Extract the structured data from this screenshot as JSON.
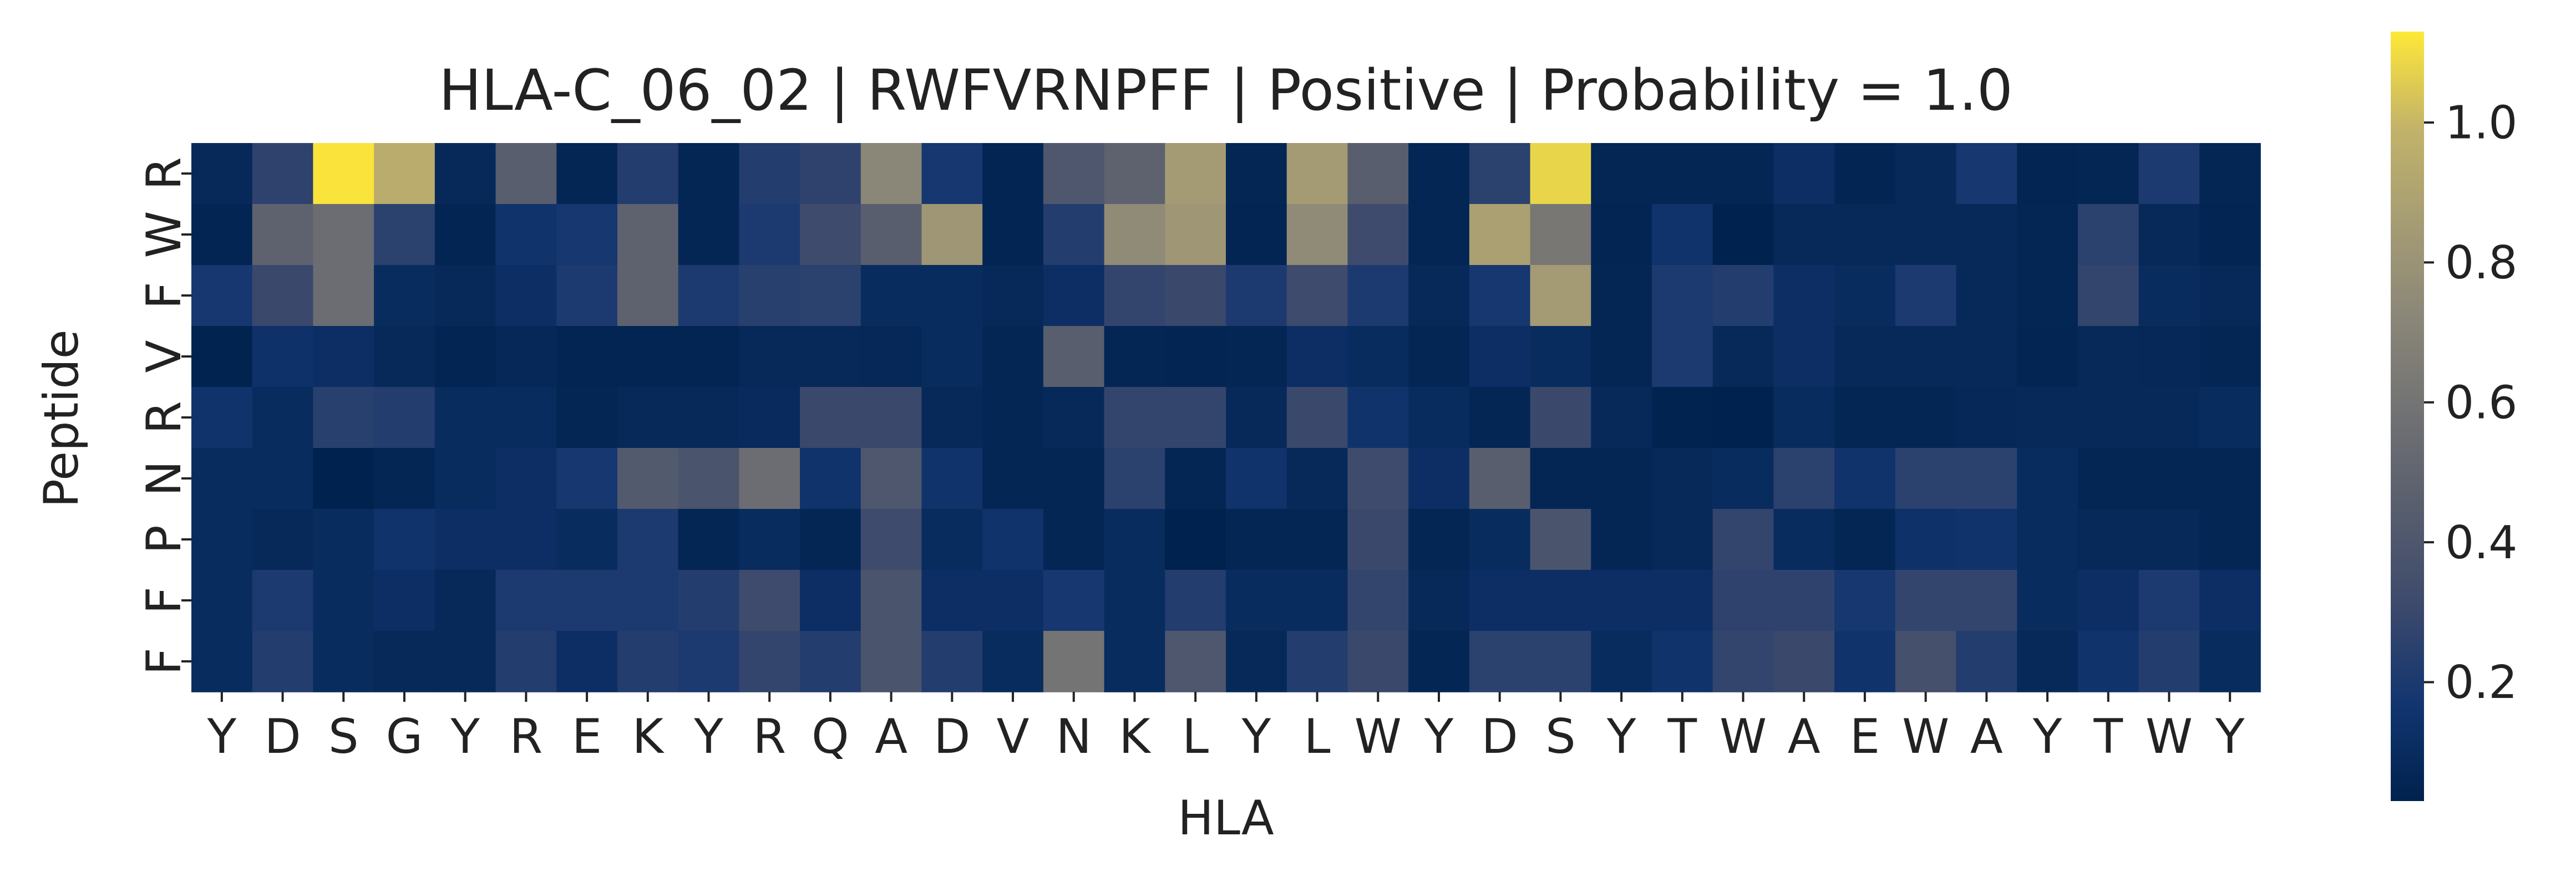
{
  "chart_data": {
    "type": "heatmap",
    "title": "HLA-C_06_02 | RWFVRNPFF | Positive | Probability = 1.0",
    "xlabel": "HLA",
    "ylabel": "Peptide",
    "x_labels": [
      "Y",
      "D",
      "S",
      "G",
      "Y",
      "R",
      "E",
      "K",
      "Y",
      "R",
      "Q",
      "A",
      "D",
      "V",
      "N",
      "K",
      "L",
      "Y",
      "L",
      "W",
      "Y",
      "D",
      "S",
      "Y",
      "T",
      "W",
      "A",
      "E",
      "W",
      "A",
      "Y",
      "T",
      "W",
      "Y"
    ],
    "y_labels": [
      "R",
      "W",
      "F",
      "V",
      "R",
      "N",
      "P",
      "F",
      "F"
    ],
    "colormap": "cividis",
    "color_range": [
      0.03,
      1.13
    ],
    "colorbar_ticks": [
      "0.2",
      "0.4",
      "0.6",
      "0.8",
      "1.0"
    ],
    "colorbar_tick_values": [
      0.2,
      0.4,
      0.6,
      0.8,
      1.0
    ],
    "values": [
      [
        0.08,
        0.26,
        1.12,
        0.95,
        0.08,
        0.45,
        0.06,
        0.22,
        0.06,
        0.22,
        0.26,
        0.72,
        0.18,
        0.05,
        0.4,
        0.48,
        0.85,
        0.06,
        0.85,
        0.45,
        0.06,
        0.25,
        1.08,
        0.06,
        0.06,
        0.06,
        0.12,
        0.05,
        0.08,
        0.18,
        0.05,
        0.06,
        0.2,
        0.06
      ],
      [
        0.05,
        0.48,
        0.55,
        0.25,
        0.05,
        0.15,
        0.18,
        0.48,
        0.06,
        0.2,
        0.32,
        0.45,
        0.82,
        0.05,
        0.22,
        0.75,
        0.82,
        0.05,
        0.75,
        0.32,
        0.06,
        0.88,
        0.62,
        0.05,
        0.15,
        0.03,
        0.08,
        0.08,
        0.08,
        0.08,
        0.06,
        0.25,
        0.08,
        0.05
      ],
      [
        0.18,
        0.3,
        0.55,
        0.1,
        0.08,
        0.12,
        0.2,
        0.48,
        0.2,
        0.24,
        0.25,
        0.1,
        0.1,
        0.08,
        0.12,
        0.28,
        0.3,
        0.2,
        0.32,
        0.2,
        0.08,
        0.18,
        0.85,
        0.06,
        0.2,
        0.22,
        0.12,
        0.1,
        0.2,
        0.08,
        0.06,
        0.28,
        0.1,
        0.08
      ],
      [
        0.04,
        0.14,
        0.12,
        0.08,
        0.05,
        0.07,
        0.05,
        0.05,
        0.05,
        0.08,
        0.08,
        0.07,
        0.1,
        0.06,
        0.45,
        0.06,
        0.05,
        0.06,
        0.12,
        0.1,
        0.06,
        0.12,
        0.1,
        0.06,
        0.2,
        0.08,
        0.12,
        0.08,
        0.08,
        0.08,
        0.05,
        0.08,
        0.07,
        0.06
      ],
      [
        0.15,
        0.1,
        0.24,
        0.22,
        0.1,
        0.1,
        0.06,
        0.08,
        0.08,
        0.09,
        0.3,
        0.3,
        0.08,
        0.06,
        0.08,
        0.28,
        0.28,
        0.08,
        0.3,
        0.15,
        0.1,
        0.06,
        0.3,
        0.08,
        0.04,
        0.03,
        0.1,
        0.06,
        0.06,
        0.07,
        0.08,
        0.08,
        0.08,
        0.1
      ],
      [
        0.1,
        0.1,
        0.03,
        0.06,
        0.1,
        0.12,
        0.18,
        0.42,
        0.38,
        0.55,
        0.15,
        0.4,
        0.15,
        0.06,
        0.06,
        0.25,
        0.06,
        0.15,
        0.08,
        0.32,
        0.12,
        0.45,
        0.06,
        0.06,
        0.08,
        0.1,
        0.25,
        0.15,
        0.25,
        0.25,
        0.1,
        0.06,
        0.06,
        0.06
      ],
      [
        0.1,
        0.08,
        0.1,
        0.15,
        0.12,
        0.12,
        0.1,
        0.2,
        0.06,
        0.1,
        0.06,
        0.32,
        0.1,
        0.15,
        0.06,
        0.1,
        0.03,
        0.06,
        0.06,
        0.3,
        0.06,
        0.1,
        0.38,
        0.06,
        0.08,
        0.28,
        0.1,
        0.06,
        0.14,
        0.15,
        0.1,
        0.08,
        0.08,
        0.06
      ],
      [
        0.1,
        0.2,
        0.1,
        0.12,
        0.08,
        0.2,
        0.2,
        0.2,
        0.22,
        0.32,
        0.12,
        0.38,
        0.12,
        0.12,
        0.18,
        0.1,
        0.22,
        0.1,
        0.1,
        0.28,
        0.08,
        0.12,
        0.12,
        0.12,
        0.12,
        0.26,
        0.26,
        0.18,
        0.28,
        0.28,
        0.1,
        0.12,
        0.2,
        0.12
      ],
      [
        0.1,
        0.22,
        0.1,
        0.08,
        0.08,
        0.22,
        0.12,
        0.22,
        0.2,
        0.28,
        0.22,
        0.38,
        0.22,
        0.1,
        0.6,
        0.1,
        0.4,
        0.08,
        0.22,
        0.3,
        0.06,
        0.25,
        0.25,
        0.1,
        0.15,
        0.28,
        0.3,
        0.15,
        0.35,
        0.22,
        0.08,
        0.15,
        0.22,
        0.1
      ]
    ]
  }
}
